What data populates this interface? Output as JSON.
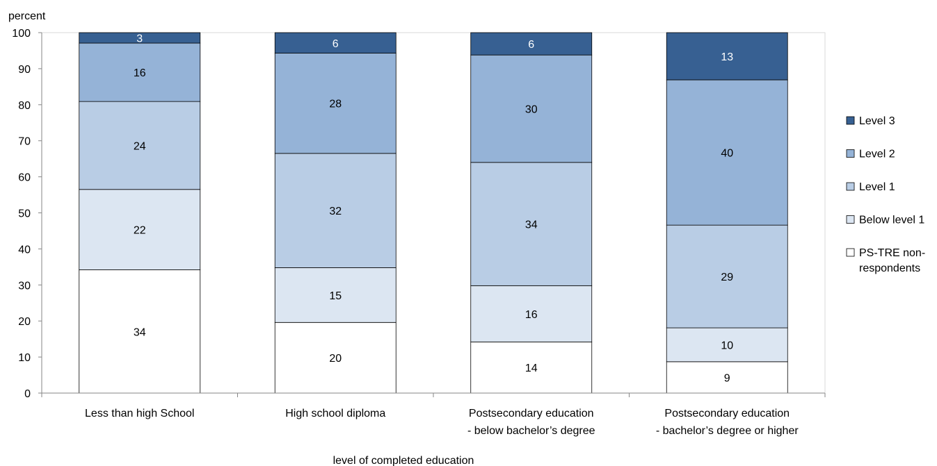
{
  "chart_data": {
    "type": "bar",
    "stacked": true,
    "title": "",
    "ylabel": "percent",
    "xlabel": "level of completed education",
    "ylim": [
      0,
      100
    ],
    "yticks": [
      0,
      10,
      20,
      30,
      40,
      50,
      60,
      70,
      80,
      90,
      100
    ],
    "grid": false,
    "legend_position": "right",
    "categories": [
      [
        "Less than high School"
      ],
      [
        "High school diploma"
      ],
      [
        "Postsecondary education",
        "- below bachelor’s degree"
      ],
      [
        "Postsecondary education",
        "- bachelor’s degree or higher"
      ]
    ],
    "series": [
      {
        "name": "PS-TRE non-respondents",
        "color": "#ffffff",
        "label_color": "#000000",
        "values": [
          34.2,
          19.6,
          14.2,
          8.7
        ]
      },
      {
        "name": "Below level 1",
        "color": "#dce6f2",
        "label_color": "#000000",
        "values": [
          22.3,
          15.2,
          15.6,
          9.4
        ]
      },
      {
        "name": "Level 1",
        "color": "#b9cde5",
        "label_color": "#000000",
        "values": [
          24.4,
          31.7,
          34.2,
          28.5
        ]
      },
      {
        "name": "Level 2",
        "color": "#95b3d7",
        "label_color": "#000000",
        "values": [
          16.2,
          27.8,
          29.8,
          40.3
        ]
      },
      {
        "name": "Level 3",
        "color": "#376092",
        "label_color": "#ffffff",
        "values": [
          2.9,
          5.7,
          6.2,
          13.1
        ]
      }
    ],
    "data_labels": [
      [
        "34",
        "20",
        "14",
        "9"
      ],
      [
        "22",
        "15",
        "16",
        "10"
      ],
      [
        "24",
        "32",
        "34",
        "29"
      ],
      [
        "16",
        "28",
        "30",
        "40"
      ],
      [
        "3",
        "6",
        "6",
        "13"
      ]
    ],
    "legend_lines": [
      [
        "PS-TRE non-",
        "respondents"
      ],
      [
        "Below level 1"
      ],
      [
        "Level 1"
      ],
      [
        "Level 2"
      ],
      [
        "Level 3"
      ]
    ]
  }
}
